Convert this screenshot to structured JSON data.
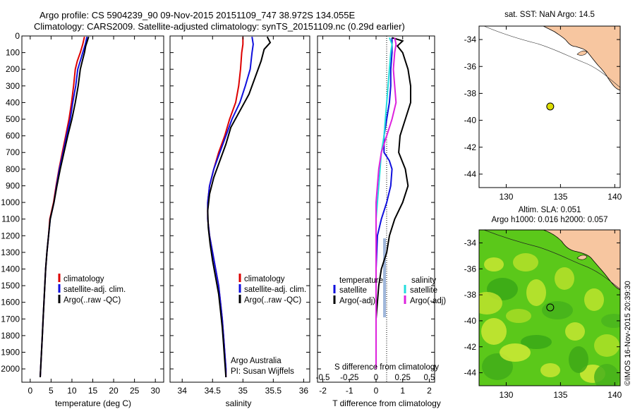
{
  "header": {
    "title_line1": "Argo profile: CS 5904239_90 09-Nov-2015 20151109_747 38.972S 134.055E",
    "title_line2": "Climatology: CARS2009. Satellite-adjusted climatology: synTS_20151109.nc (0.29d earlier)"
  },
  "side_credit": "©IMOS 16-Nov-2015 20:39:30",
  "colors": {
    "climatology": "#dd0000",
    "satellite": "#1010dd",
    "argo": "#000000",
    "sat_salinity": "#22dddd",
    "argo_salinity": "#dd22dd",
    "land": "#f7c6a0",
    "float_marker": "#dddd00"
  },
  "chart_data": [
    {
      "type": "line",
      "id": "temperature_profile",
      "xlabel": "temperature (deg C)",
      "xlim": [
        -2,
        32
      ],
      "xticks": [
        0,
        5,
        10,
        15,
        20,
        25,
        30
      ],
      "ylim": [
        0,
        2080
      ],
      "yticks": [
        0,
        100,
        200,
        300,
        400,
        500,
        600,
        700,
        800,
        900,
        1000,
        1100,
        1200,
        1300,
        1400,
        1500,
        1600,
        1700,
        1800,
        1900,
        2000
      ],
      "legend": [
        "climatology",
        "satellite-adj. clim.",
        "Argo(..raw -QC)"
      ],
      "series": [
        {
          "name": "climatology",
          "color_key": "climatology",
          "points": [
            [
              13.0,
              5
            ],
            [
              12.6,
              50
            ],
            [
              12.0,
              100
            ],
            [
              11.3,
              150
            ],
            [
              10.8,
              200
            ],
            [
              10.4,
              300
            ],
            [
              9.9,
              400
            ],
            [
              9.3,
              500
            ],
            [
              8.5,
              600
            ],
            [
              7.7,
              700
            ],
            [
              6.9,
              800
            ],
            [
              6.2,
              900
            ],
            [
              5.6,
              1000
            ],
            [
              4.7,
              1100
            ],
            [
              4.4,
              1200
            ],
            [
              4.0,
              1300
            ],
            [
              3.7,
              1400
            ],
            [
              3.5,
              1500
            ],
            [
              3.3,
              1600
            ],
            [
              3.1,
              1700
            ],
            [
              2.9,
              1800
            ],
            [
              2.7,
              1900
            ],
            [
              2.5,
              2000
            ],
            [
              2.4,
              2050
            ]
          ]
        },
        {
          "name": "satellite-adj. clim.",
          "color_key": "satellite",
          "points": [
            [
              13.6,
              5
            ],
            [
              13.2,
              50
            ],
            [
              12.6,
              100
            ],
            [
              12.0,
              150
            ],
            [
              11.4,
              200
            ],
            [
              10.9,
              300
            ],
            [
              10.2,
              400
            ],
            [
              9.6,
              500
            ],
            [
              8.7,
              600
            ],
            [
              7.9,
              700
            ],
            [
              7.0,
              800
            ],
            [
              6.3,
              900
            ],
            [
              5.7,
              1000
            ],
            [
              4.8,
              1100
            ],
            [
              4.4,
              1200
            ],
            [
              4.0,
              1300
            ],
            [
              3.7,
              1400
            ],
            [
              3.5,
              1500
            ],
            [
              3.3,
              1600
            ],
            [
              3.1,
              1700
            ],
            [
              2.9,
              1800
            ],
            [
              2.7,
              1900
            ],
            [
              2.5,
              2000
            ],
            [
              2.4,
              2050
            ]
          ]
        },
        {
          "name": "Argo(..raw -QC)",
          "color_key": "argo",
          "points": [
            [
              14.0,
              5
            ],
            [
              13.7,
              30
            ],
            [
              13.3,
              60
            ],
            [
              13.0,
              100
            ],
            [
              12.5,
              150
            ],
            [
              12.0,
              200
            ],
            [
              11.5,
              300
            ],
            [
              10.8,
              400
            ],
            [
              10.0,
              500
            ],
            [
              9.0,
              600
            ],
            [
              8.1,
              700
            ],
            [
              7.2,
              800
            ],
            [
              6.4,
              900
            ],
            [
              5.7,
              1000
            ],
            [
              4.8,
              1100
            ],
            [
              4.4,
              1200
            ],
            [
              4.0,
              1300
            ],
            [
              3.7,
              1400
            ],
            [
              3.5,
              1500
            ],
            [
              3.3,
              1600
            ],
            [
              3.1,
              1700
            ],
            [
              2.9,
              1800
            ],
            [
              2.7,
              1900
            ],
            [
              2.5,
              2000
            ],
            [
              2.4,
              2050
            ]
          ]
        }
      ]
    },
    {
      "type": "line",
      "id": "salinity_profile",
      "xlabel": "salinity",
      "xlim": [
        33.8,
        36.1
      ],
      "xticks": [
        34,
        34.5,
        35,
        35.5,
        36
      ],
      "ylim": [
        0,
        2080
      ],
      "legend": [
        "climatology",
        "satellite-adj. clim.",
        "Argo(..raw -QC)"
      ],
      "annotation": [
        "Argo Australia",
        "PI: Susan Wijffels"
      ],
      "series": [
        {
          "name": "climatology",
          "color_key": "climatology",
          "points": [
            [
              35.0,
              5
            ],
            [
              35.0,
              50
            ],
            [
              34.98,
              100
            ],
            [
              34.96,
              200
            ],
            [
              34.93,
              300
            ],
            [
              34.88,
              400
            ],
            [
              34.78,
              500
            ],
            [
              34.7,
              600
            ],
            [
              34.6,
              700
            ],
            [
              34.52,
              800
            ],
            [
              34.45,
              900
            ],
            [
              34.42,
              1000
            ],
            [
              34.42,
              1100
            ],
            [
              34.45,
              1200
            ],
            [
              34.5,
              1300
            ],
            [
              34.55,
              1400
            ],
            [
              34.6,
              1500
            ],
            [
              34.63,
              1600
            ],
            [
              34.66,
              1700
            ],
            [
              34.68,
              1800
            ],
            [
              34.7,
              1900
            ],
            [
              34.72,
              2000
            ],
            [
              34.72,
              2050
            ]
          ]
        },
        {
          "name": "satellite-adj. clim.",
          "color_key": "satellite",
          "points": [
            [
              35.15,
              5
            ],
            [
              35.17,
              50
            ],
            [
              35.15,
              100
            ],
            [
              35.12,
              200
            ],
            [
              35.04,
              300
            ],
            [
              34.95,
              400
            ],
            [
              34.82,
              500
            ],
            [
              34.72,
              600
            ],
            [
              34.62,
              700
            ],
            [
              34.52,
              800
            ],
            [
              34.45,
              900
            ],
            [
              34.42,
              1000
            ],
            [
              34.42,
              1100
            ],
            [
              34.45,
              1200
            ],
            [
              34.5,
              1300
            ],
            [
              34.55,
              1400
            ],
            [
              34.6,
              1500
            ],
            [
              34.63,
              1600
            ],
            [
              34.66,
              1700
            ],
            [
              34.68,
              1800
            ],
            [
              34.7,
              1900
            ],
            [
              34.72,
              2000
            ],
            [
              34.72,
              2050
            ]
          ]
        },
        {
          "name": "Argo(..raw -QC)",
          "color_key": "argo",
          "points": [
            [
              35.4,
              5
            ],
            [
              35.45,
              40
            ],
            [
              35.35,
              80
            ],
            [
              35.3,
              150
            ],
            [
              35.2,
              250
            ],
            [
              35.1,
              350
            ],
            [
              34.95,
              450
            ],
            [
              34.8,
              550
            ],
            [
              34.72,
              650
            ],
            [
              34.62,
              750
            ],
            [
              34.52,
              850
            ],
            [
              34.45,
              950
            ],
            [
              34.42,
              1050
            ],
            [
              34.43,
              1150
            ],
            [
              34.46,
              1250
            ],
            [
              34.5,
              1350
            ],
            [
              34.55,
              1450
            ],
            [
              34.6,
              1550
            ],
            [
              34.63,
              1650
            ],
            [
              34.66,
              1750
            ],
            [
              34.68,
              1850
            ],
            [
              34.7,
              1950
            ],
            [
              34.72,
              2050
            ]
          ]
        }
      ]
    },
    {
      "type": "line",
      "id": "difference_profile",
      "xlabel": "T difference from climatology",
      "top_axis_label": "S difference from climatology",
      "xlim_T": [
        -2.2,
        2.2
      ],
      "xticks_T": [
        -2,
        -1,
        0,
        1,
        2
      ],
      "xticks_S": [
        "-0.5",
        "-0.25",
        "0",
        "0.25",
        "0.5"
      ],
      "ylim": [
        0,
        2080
      ],
      "legend_temperature": {
        "heading": "temperature",
        "items": [
          "satellite",
          "Argo(-adj)"
        ]
      },
      "legend_salinity": {
        "heading": "salinity",
        "items": [
          "satellite",
          "Argo(-adj)"
        ]
      },
      "series": [
        {
          "name": "satellite",
          "color_key": "satellite",
          "points": [
            [
              0.6,
              10
            ],
            [
              0.6,
              50
            ],
            [
              0.6,
              100
            ],
            [
              0.55,
              200
            ],
            [
              0.55,
              300
            ],
            [
              0.5,
              400
            ],
            [
              0.4,
              500
            ],
            [
              0.3,
              600
            ],
            [
              0.3,
              700
            ],
            [
              0.5,
              750
            ],
            [
              0.6,
              800
            ],
            [
              0.55,
              900
            ],
            [
              0.4,
              1000
            ],
            [
              0.2,
              1100
            ],
            [
              0.05,
              1200
            ],
            [
              0.0,
              1400
            ],
            [
              0.0,
              2000
            ]
          ]
        },
        {
          "name": "Argo(-adj)",
          "color_key": "argo",
          "points": [
            [
              0.6,
              10
            ],
            [
              1.0,
              30
            ],
            [
              0.8,
              60
            ],
            [
              1.0,
              100
            ],
            [
              1.1,
              150
            ],
            [
              1.2,
              200
            ],
            [
              1.3,
              300
            ],
            [
              1.3,
              400
            ],
            [
              1.1,
              500
            ],
            [
              0.9,
              600
            ],
            [
              0.85,
              700
            ],
            [
              1.1,
              800
            ],
            [
              1.2,
              900
            ],
            [
              1.0,
              1000
            ],
            [
              0.7,
              1100
            ],
            [
              0.5,
              1200
            ],
            [
              0.4,
              1300
            ],
            [
              0.2,
              1400
            ],
            [
              0.1,
              1500
            ],
            [
              0.05,
              1600
            ],
            [
              0.0,
              1700
            ],
            [
              0.0,
              2000
            ]
          ]
        },
        {
          "name": "satellite (salinity)",
          "color_key": "sat_salinity",
          "points": [
            [
              0.5,
              10
            ],
            [
              0.6,
              50
            ],
            [
              0.55,
              100
            ],
            [
              0.5,
              200
            ],
            [
              0.45,
              300
            ],
            [
              0.4,
              400
            ],
            [
              0.35,
              500
            ],
            [
              0.3,
              600
            ],
            [
              0.2,
              700
            ],
            [
              0.15,
              800
            ],
            [
              0.1,
              900
            ],
            [
              0.05,
              1000
            ],
            [
              0.0,
              1100
            ],
            [
              0.0,
              2000
            ]
          ]
        },
        {
          "name": "Argo(-adj) (salinity)",
          "color_key": "argo_salinity",
          "points": [
            [
              0.7,
              10
            ],
            [
              0.75,
              50
            ],
            [
              0.7,
              100
            ],
            [
              0.65,
              200
            ],
            [
              0.7,
              300
            ],
            [
              0.75,
              400
            ],
            [
              0.6,
              500
            ],
            [
              0.4,
              600
            ],
            [
              0.2,
              700
            ],
            [
              0.1,
              800
            ],
            [
              0.05,
              900
            ],
            [
              0.0,
              1000
            ],
            [
              0.0,
              2000
            ]
          ]
        }
      ]
    },
    {
      "type": "map",
      "id": "sst_map",
      "title": "sat. SST: NaN Argo: 14.5",
      "xlim": [
        127.5,
        140.5
      ],
      "ylim": [
        -45,
        -33
      ],
      "xticks": [
        130,
        135,
        140
      ],
      "yticks": [
        -34,
        -36,
        -38,
        -40,
        -42,
        -44
      ],
      "float_position": [
        134.055,
        -38.972
      ]
    },
    {
      "type": "map",
      "id": "sla_map",
      "title_line1": "Altim. SLA: 0.051",
      "title_line2": "Argo h1000: 0.016 h2000: 0.057",
      "xlim": [
        127.5,
        140.5
      ],
      "ylim": [
        -45,
        -33
      ],
      "xticks": [
        130,
        135,
        140
      ],
      "yticks": [
        -34,
        -36,
        -38,
        -40,
        -42,
        -44
      ],
      "float_position": [
        134.055,
        -38.972
      ]
    }
  ]
}
